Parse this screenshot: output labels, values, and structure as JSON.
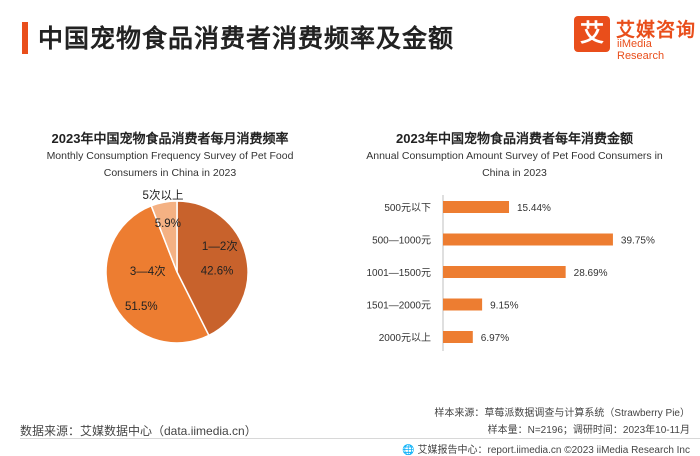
{
  "header": {
    "title": "中国宠物食品消费者消费频率及金额",
    "logo_mark": "艾",
    "logo_cn": "艾媒咨询",
    "logo_en": "iiMedia Research"
  },
  "colors": {
    "accent": "#e94e1b",
    "dark_orange": "#c8622c",
    "orange": "#ed7d31",
    "light": "#f4b183"
  },
  "chart_data": [
    {
      "type": "pie",
      "title": "2023年中国宠物食品消费者每月消费频率",
      "subtitle_line1": "Monthly Consumption Frequency Survey of Pet Food",
      "subtitle_line2": "Consumers in China in 2023",
      "slices": [
        {
          "label": "1—2次",
          "value": 42.6,
          "display": "42.6%"
        },
        {
          "label": "3—4次",
          "value": 51.5,
          "display": "51.5%"
        },
        {
          "label": "5次以上",
          "value": 5.9,
          "display": "5.9%"
        }
      ]
    },
    {
      "type": "bar",
      "orientation": "horizontal",
      "title": "2023年中国宠物食品消费者每年消费金额",
      "subtitle_line1": "Annual Consumption Amount Survey of Pet Food Consumers in",
      "subtitle_line2": "China in 2023",
      "categories": [
        "500元以下",
        "500—1000元",
        "1001—1500元",
        "1501—2000元",
        "2000元以上"
      ],
      "values": [
        15.44,
        39.75,
        28.69,
        9.15,
        6.97
      ],
      "labels": [
        "15.44%",
        "39.75%",
        "28.69%",
        "9.15%",
        "6.97%"
      ],
      "xlim": [
        0,
        40
      ]
    }
  ],
  "footer": {
    "source": "数据来源：艾媒数据中心（data.iimedia.cn）",
    "sample_source": "样本来源：草莓派数据调查与计算系统（Strawberry Pie）",
    "sample_size": "样本量：N=2196；调研时间：2023年10-11月",
    "report_center": "艾媒报告中心：report.iimedia.cn   ©2023  iiMedia Research  Inc"
  }
}
